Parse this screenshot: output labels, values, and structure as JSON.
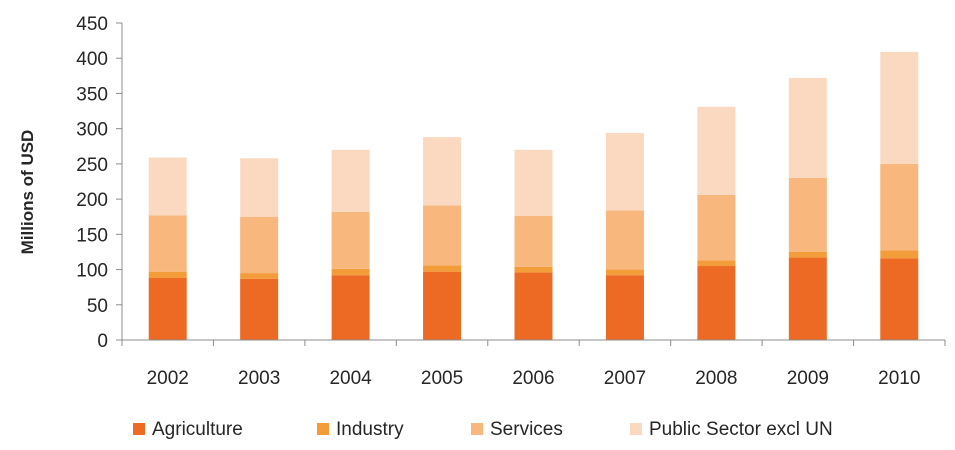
{
  "chart_data": {
    "type": "bar",
    "stacked": true,
    "title": "",
    "xlabel": "",
    "ylabel": "Millions of USD",
    "ylim": [
      0,
      450
    ],
    "yticks": [
      0,
      50,
      100,
      150,
      200,
      250,
      300,
      350,
      400,
      450
    ],
    "grid": false,
    "legend_position": "bottom",
    "categories": [
      "2002",
      "2003",
      "2004",
      "2005",
      "2006",
      "2007",
      "2008",
      "2009",
      "2010"
    ],
    "series": [
      {
        "name": "Agriculture",
        "color": "#ec6a24",
        "values": [
          88,
          87,
          92,
          97,
          96,
          92,
          105,
          117,
          116
        ]
      },
      {
        "name": "Industry",
        "color": "#f39c3a",
        "values": [
          9,
          8,
          9,
          9,
          8,
          8,
          8,
          8,
          11
        ]
      },
      {
        "name": "Services",
        "color": "#f7b77d",
        "values": [
          80,
          80,
          81,
          85,
          72,
          84,
          93,
          105,
          123
        ]
      },
      {
        "name": "Public Sector excl UN",
        "color": "#fbd9c0",
        "values": [
          82,
          83,
          88,
          97,
          94,
          110,
          125,
          142,
          159
        ]
      }
    ]
  }
}
